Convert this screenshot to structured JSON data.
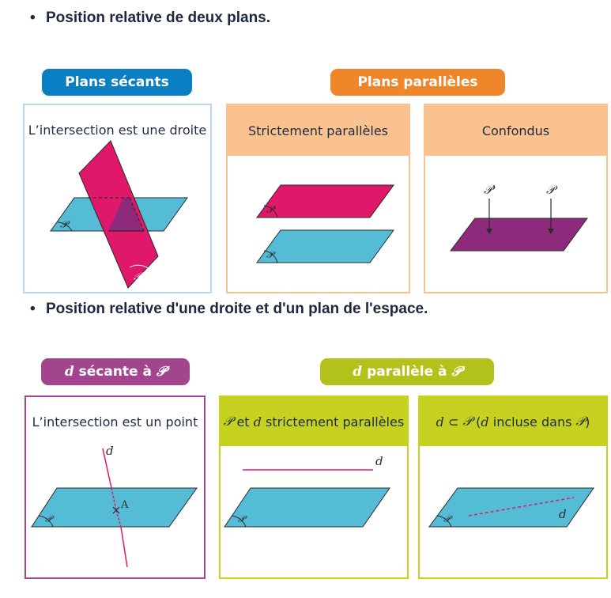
{
  "section1": {
    "title": "Position relative de deux plans.",
    "pill_secants": "Plans sécants",
    "pill_paralleles": "Plans parallèles",
    "panel_secants": {
      "caption": "L’intersection est une droite",
      "plane_label": "𝒫",
      "plane2_label": "𝒫'"
    },
    "panel_strict": {
      "caption": "Strictement parallèles",
      "plane_label": "𝒫",
      "plane2_label": "𝒫'"
    },
    "panel_confondus": {
      "caption": "Confondus",
      "label_p_prime": "𝒫'",
      "label_p": "𝒫"
    }
  },
  "section2": {
    "title": "Position relative d'une droite et d'un plan de l'espace.",
    "pill_secante": {
      "var": "d",
      "text": "sécante à",
      "plane": "𝒫"
    },
    "pill_parallele": {
      "var": "d",
      "text": "parallèle à",
      "plane": "𝒫"
    },
    "panel_point": {
      "caption": "L’intersection est un point",
      "line_label": "d",
      "point_label": "A",
      "plane_label": "𝒫"
    },
    "panel_strict": {
      "caption_plane": "𝒫",
      "caption_mid": "et",
      "caption_var": "d",
      "caption_end": "strictement parallèles",
      "line_label": "d",
      "plane_label": "𝒫"
    },
    "panel_incluse": {
      "caption_var": "d",
      "caption_sym": "⊂",
      "caption_plane": "𝒫",
      "caption_paren_open": "(",
      "caption_var2": "d",
      "caption_mid": "incluse dans",
      "caption_plane2": "𝒫",
      "caption_paren_close": ")",
      "line_label": "d",
      "plane_label": "𝒫"
    }
  },
  "colors": {
    "blue_pill": "#0b7fc4",
    "orange_pill": "#f0862a",
    "purple_pill": "#a3448f",
    "green_pill": "#b3c21a",
    "plane_blue": "#55bcd6",
    "plane_magenta": "#e0186a",
    "plane_purple": "#8e2a7c",
    "orange_head": "#f9c28e",
    "green_head": "#c6d21f"
  }
}
